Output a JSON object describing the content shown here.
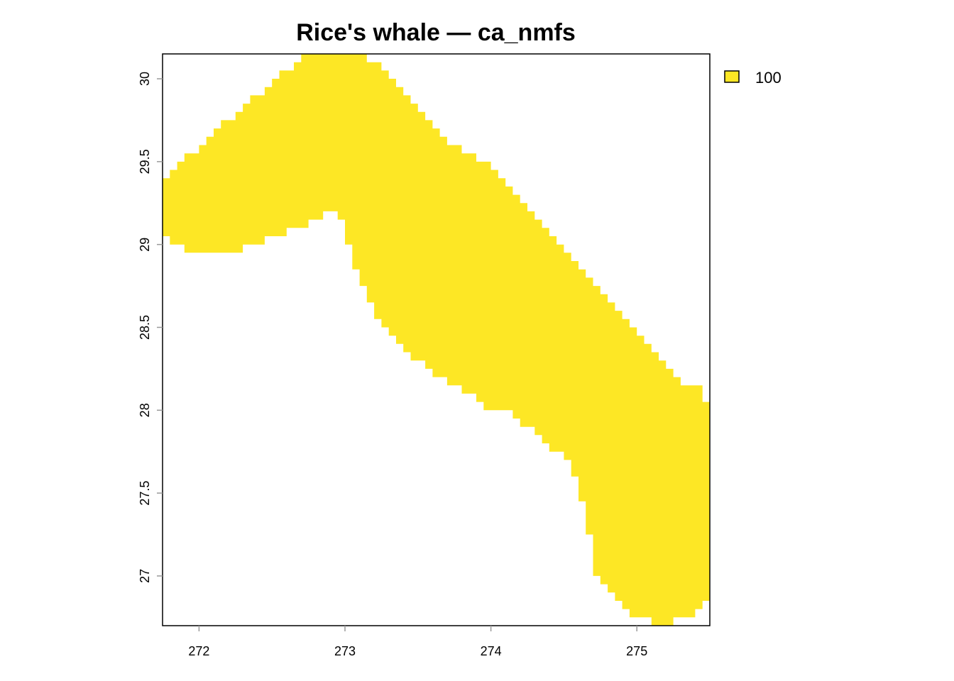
{
  "map": {
    "title": "Rice's whale — ca_nmfs",
    "fill_color": "#FDE725",
    "frame_color": "#000000",
    "x_axis": {
      "range": [
        271.75,
        275.5
      ],
      "ticks": [
        "272",
        "273",
        "274",
        "275"
      ],
      "tick_values": [
        272,
        273,
        274,
        275
      ]
    },
    "y_axis": {
      "range": [
        26.7,
        30.15
      ],
      "ticks": [
        "27",
        "27.5",
        "28",
        "28.5",
        "29",
        "29.5",
        "30"
      ],
      "tick_values": [
        27,
        27.5,
        28,
        28.5,
        29,
        29.5,
        30
      ]
    },
    "legend": {
      "position": "top-right",
      "items": [
        {
          "label": "100",
          "color": "#FDE725"
        }
      ]
    }
  },
  "chart_data": {
    "type": "heatmap",
    "title": "Rice's whale — ca_nmfs",
    "xlabel": "",
    "ylabel": "",
    "xlim": [
      271.75,
      275.5
    ],
    "ylim": [
      26.7,
      30.15
    ],
    "x_ticks": [
      272,
      273,
      274,
      275
    ],
    "y_ticks": [
      27,
      27.5,
      28,
      28.5,
      29,
      29.5,
      30
    ],
    "categories": [
      "100"
    ],
    "region_value": 100,
    "grid": false,
    "legend": "top-right",
    "region_outline": [
      [
        271.75,
        29.4
      ],
      [
        271.8,
        29.4
      ],
      [
        271.8,
        29.45
      ],
      [
        271.85,
        29.45
      ],
      [
        271.85,
        29.5
      ],
      [
        271.9,
        29.5
      ],
      [
        271.9,
        29.55
      ],
      [
        272.0,
        29.55
      ],
      [
        272.0,
        29.6
      ],
      [
        272.05,
        29.6
      ],
      [
        272.05,
        29.65
      ],
      [
        272.1,
        29.65
      ],
      [
        272.1,
        29.7
      ],
      [
        272.15,
        29.7
      ],
      [
        272.15,
        29.75
      ],
      [
        272.25,
        29.75
      ],
      [
        272.25,
        29.8
      ],
      [
        272.3,
        29.8
      ],
      [
        272.3,
        29.85
      ],
      [
        272.35,
        29.85
      ],
      [
        272.35,
        29.9
      ],
      [
        272.45,
        29.9
      ],
      [
        272.45,
        29.95
      ],
      [
        272.5,
        29.95
      ],
      [
        272.5,
        30.0
      ],
      [
        272.55,
        30.0
      ],
      [
        272.55,
        30.05
      ],
      [
        272.65,
        30.05
      ],
      [
        272.65,
        30.1
      ],
      [
        272.7,
        30.1
      ],
      [
        272.7,
        30.15
      ],
      [
        273.15,
        30.15
      ],
      [
        273.15,
        30.1
      ],
      [
        273.25,
        30.1
      ],
      [
        273.25,
        30.05
      ],
      [
        273.3,
        30.05
      ],
      [
        273.3,
        30.0
      ],
      [
        273.35,
        30.0
      ],
      [
        273.35,
        29.95
      ],
      [
        273.4,
        29.95
      ],
      [
        273.4,
        29.9
      ],
      [
        273.45,
        29.9
      ],
      [
        273.45,
        29.85
      ],
      [
        273.5,
        29.85
      ],
      [
        273.5,
        29.8
      ],
      [
        273.55,
        29.8
      ],
      [
        273.55,
        29.75
      ],
      [
        273.6,
        29.75
      ],
      [
        273.6,
        29.7
      ],
      [
        273.65,
        29.7
      ],
      [
        273.65,
        29.65
      ],
      [
        273.7,
        29.65
      ],
      [
        273.7,
        29.6
      ],
      [
        273.8,
        29.6
      ],
      [
        273.8,
        29.55
      ],
      [
        273.9,
        29.55
      ],
      [
        273.9,
        29.5
      ],
      [
        274.0,
        29.5
      ],
      [
        274.0,
        29.45
      ],
      [
        274.05,
        29.45
      ],
      [
        274.05,
        29.4
      ],
      [
        274.1,
        29.4
      ],
      [
        274.1,
        29.35
      ],
      [
        274.15,
        29.35
      ],
      [
        274.15,
        29.3
      ],
      [
        274.2,
        29.3
      ],
      [
        274.2,
        29.25
      ],
      [
        274.25,
        29.25
      ],
      [
        274.25,
        29.2
      ],
      [
        274.3,
        29.2
      ],
      [
        274.3,
        29.15
      ],
      [
        274.35,
        29.15
      ],
      [
        274.35,
        29.1
      ],
      [
        274.4,
        29.1
      ],
      [
        274.4,
        29.05
      ],
      [
        274.45,
        29.05
      ],
      [
        274.45,
        29.0
      ],
      [
        274.5,
        29.0
      ],
      [
        274.5,
        28.95
      ],
      [
        274.55,
        28.95
      ],
      [
        274.55,
        28.9
      ],
      [
        274.6,
        28.9
      ],
      [
        274.6,
        28.85
      ],
      [
        274.65,
        28.85
      ],
      [
        274.65,
        28.8
      ],
      [
        274.7,
        28.8
      ],
      [
        274.7,
        28.75
      ],
      [
        274.75,
        28.75
      ],
      [
        274.75,
        28.7
      ],
      [
        274.8,
        28.7
      ],
      [
        274.8,
        28.65
      ],
      [
        274.85,
        28.65
      ],
      [
        274.85,
        28.6
      ],
      [
        274.9,
        28.6
      ],
      [
        274.9,
        28.55
      ],
      [
        274.95,
        28.55
      ],
      [
        274.95,
        28.5
      ],
      [
        275.0,
        28.5
      ],
      [
        275.0,
        28.45
      ],
      [
        275.05,
        28.45
      ],
      [
        275.05,
        28.4
      ],
      [
        275.1,
        28.4
      ],
      [
        275.1,
        28.35
      ],
      [
        275.15,
        28.35
      ],
      [
        275.15,
        28.3
      ],
      [
        275.2,
        28.3
      ],
      [
        275.2,
        28.25
      ],
      [
        275.25,
        28.25
      ],
      [
        275.25,
        28.2
      ],
      [
        275.3,
        28.2
      ],
      [
        275.3,
        28.15
      ],
      [
        275.45,
        28.15
      ],
      [
        275.45,
        28.05
      ],
      [
        275.5,
        28.05
      ],
      [
        275.5,
        26.85
      ],
      [
        275.45,
        26.85
      ],
      [
        275.45,
        26.8
      ],
      [
        275.4,
        26.8
      ],
      [
        275.4,
        26.75
      ],
      [
        275.25,
        26.75
      ],
      [
        275.25,
        26.7
      ],
      [
        275.1,
        26.7
      ],
      [
        275.1,
        26.75
      ],
      [
        274.95,
        26.75
      ],
      [
        274.95,
        26.8
      ],
      [
        274.9,
        26.8
      ],
      [
        274.9,
        26.85
      ],
      [
        274.85,
        26.85
      ],
      [
        274.85,
        26.9
      ],
      [
        274.8,
        26.9
      ],
      [
        274.8,
        26.95
      ],
      [
        274.75,
        26.95
      ],
      [
        274.75,
        27.0
      ],
      [
        274.7,
        27.0
      ],
      [
        274.7,
        27.25
      ],
      [
        274.65,
        27.25
      ],
      [
        274.65,
        27.45
      ],
      [
        274.6,
        27.45
      ],
      [
        274.6,
        27.6
      ],
      [
        274.55,
        27.6
      ],
      [
        274.55,
        27.7
      ],
      [
        274.5,
        27.7
      ],
      [
        274.5,
        27.75
      ],
      [
        274.4,
        27.75
      ],
      [
        274.4,
        27.8
      ],
      [
        274.35,
        27.8
      ],
      [
        274.35,
        27.85
      ],
      [
        274.3,
        27.85
      ],
      [
        274.3,
        27.9
      ],
      [
        274.2,
        27.9
      ],
      [
        274.2,
        27.95
      ],
      [
        274.15,
        27.95
      ],
      [
        274.15,
        28.0
      ],
      [
        273.95,
        28.0
      ],
      [
        273.95,
        28.05
      ],
      [
        273.9,
        28.05
      ],
      [
        273.9,
        28.1
      ],
      [
        273.8,
        28.1
      ],
      [
        273.8,
        28.15
      ],
      [
        273.7,
        28.15
      ],
      [
        273.7,
        28.2
      ],
      [
        273.6,
        28.2
      ],
      [
        273.6,
        28.25
      ],
      [
        273.55,
        28.25
      ],
      [
        273.55,
        28.3
      ],
      [
        273.45,
        28.3
      ],
      [
        273.45,
        28.35
      ],
      [
        273.4,
        28.35
      ],
      [
        273.4,
        28.4
      ],
      [
        273.35,
        28.4
      ],
      [
        273.35,
        28.45
      ],
      [
        273.3,
        28.45
      ],
      [
        273.3,
        28.5
      ],
      [
        273.25,
        28.5
      ],
      [
        273.25,
        28.55
      ],
      [
        273.2,
        28.55
      ],
      [
        273.2,
        28.65
      ],
      [
        273.15,
        28.65
      ],
      [
        273.15,
        28.75
      ],
      [
        273.1,
        28.75
      ],
      [
        273.1,
        28.85
      ],
      [
        273.05,
        28.85
      ],
      [
        273.05,
        29.0
      ],
      [
        273.0,
        29.0
      ],
      [
        273.0,
        29.15
      ],
      [
        272.95,
        29.15
      ],
      [
        272.95,
        29.2
      ],
      [
        272.85,
        29.2
      ],
      [
        272.85,
        29.15
      ],
      [
        272.75,
        29.15
      ],
      [
        272.75,
        29.1
      ],
      [
        272.6,
        29.1
      ],
      [
        272.6,
        29.05
      ],
      [
        272.45,
        29.05
      ],
      [
        272.45,
        29.0
      ],
      [
        272.3,
        29.0
      ],
      [
        272.3,
        28.95
      ],
      [
        271.9,
        28.95
      ],
      [
        271.9,
        29.0
      ],
      [
        271.8,
        29.0
      ],
      [
        271.8,
        29.05
      ],
      [
        271.75,
        29.05
      ]
    ]
  }
}
